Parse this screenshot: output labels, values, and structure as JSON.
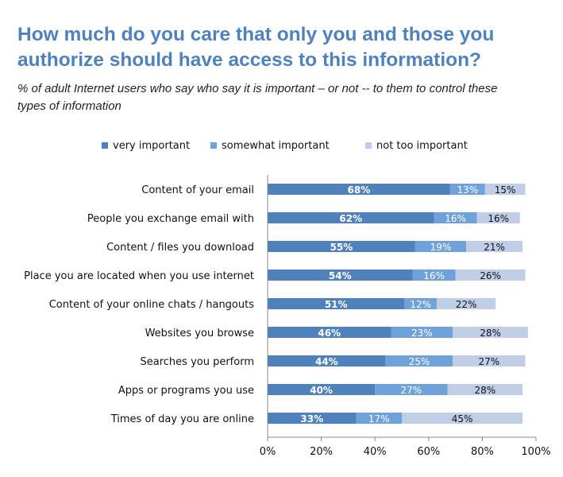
{
  "title": "How much do you care that only you and those you authorize should have access to this information?",
  "subtitle": "% of adult Internet users who say who say it is important – or not --  to them to control these types of information",
  "chart_data": {
    "type": "bar",
    "orientation": "horizontal",
    "stacked": true,
    "categories": [
      "Content of your email",
      "People you exchange email with",
      "Content / files you download",
      "Place you are located when you use internet",
      "Content of your online chats / hangouts",
      "Websites you browse",
      "Searches you perform",
      "Apps or programs you use",
      "Times of day you are online"
    ],
    "series": [
      {
        "name": "very important",
        "color": "#4F81BD",
        "label_color": "#ffffff",
        "label_bold": true,
        "values": [
          68,
          62,
          55,
          54,
          51,
          46,
          44,
          40,
          33
        ],
        "labels": [
          "68%",
          "62%",
          "55%",
          "54%",
          "51%",
          "46%",
          "44%",
          "40%",
          "33%"
        ]
      },
      {
        "name": "somewhat important",
        "color": "#6FA1DA",
        "label_color": "#ffffff",
        "label_bold": false,
        "values": [
          13,
          16,
          19,
          16,
          12,
          23,
          25,
          27,
          17
        ],
        "labels": [
          "13%",
          "16%",
          "19%",
          "16%",
          "12%",
          "23%",
          "25%",
          "27%",
          "17%"
        ]
      },
      {
        "name": "not too important",
        "color": "#BFCDE6",
        "label_color": "#111111",
        "label_bold": false,
        "values": [
          15,
          16,
          21,
          26,
          22,
          28,
          27,
          28,
          45
        ],
        "labels": [
          "15%",
          "16%",
          "21%",
          "26%",
          "22%",
          "28%",
          "27%",
          "28%",
          "45%"
        ]
      }
    ],
    "xlim": [
      0,
      100
    ],
    "xticks": [
      "0%",
      "20%",
      "40%",
      "60%",
      "80%",
      "100%"
    ],
    "legend_position": "top",
    "grid": false
  }
}
